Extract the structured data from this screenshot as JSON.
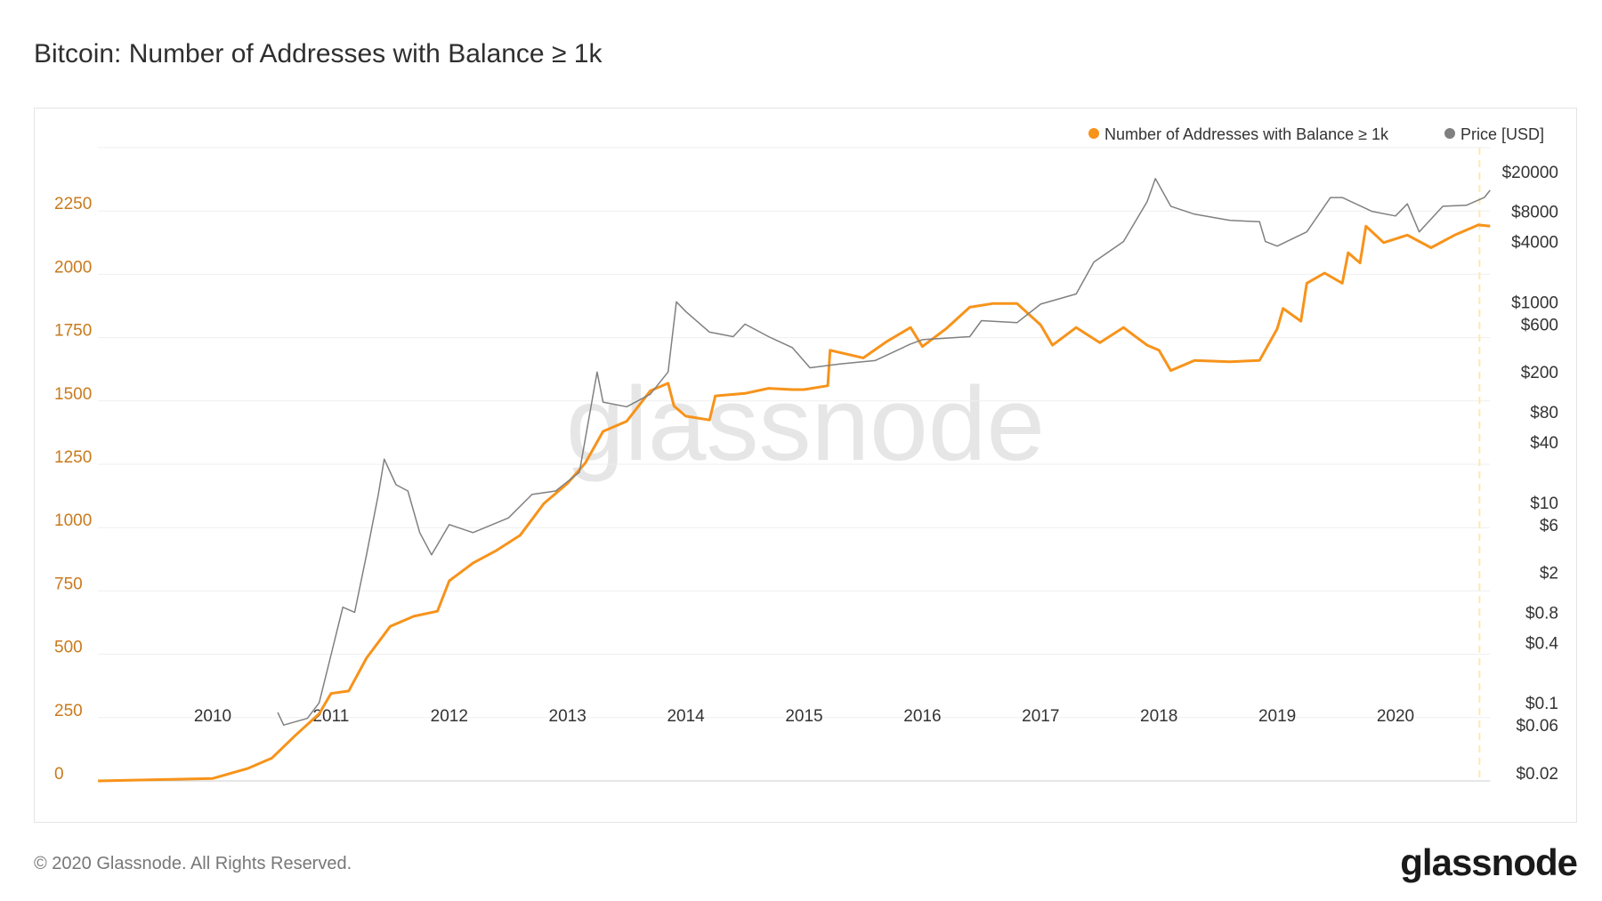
{
  "title": "Bitcoin: Number of Addresses with Balance ≥ 1k",
  "footer": {
    "copyright": "© 2020 Glassnode. All Rights Reserved.",
    "logo": "glassnode"
  },
  "watermark": "glassnode",
  "chart_data": {
    "type": "line",
    "title": "Bitcoin: Number of Addresses with Balance ≥ 1k",
    "legend_position": "top-right",
    "grid": true,
    "x_ticks": [
      "2010",
      "2011",
      "2012",
      "2013",
      "2014",
      "2015",
      "2016",
      "2017",
      "2018",
      "2019",
      "2020"
    ],
    "x_range": [
      2009.03,
      2020.8
    ],
    "y_left": {
      "range": [
        0,
        2500
      ],
      "ticks": [
        "0",
        "250",
        "500",
        "750",
        "1000",
        "1250",
        "1500",
        "1750",
        "2000",
        "2250"
      ],
      "color": "#c97a1c"
    },
    "y_right": {
      "scale": "log",
      "range": [
        0.02,
        20000
      ],
      "ticks": [
        {
          "v": 20000,
          "label": "$20000"
        },
        {
          "v": 8000,
          "label": "$8000"
        },
        {
          "v": 4000,
          "label": "$4000"
        },
        {
          "v": 1000,
          "label": "$1000"
        },
        {
          "v": 600,
          "label": "$600"
        },
        {
          "v": 200,
          "label": "$200"
        },
        {
          "v": 80,
          "label": "$80"
        },
        {
          "v": 40,
          "label": "$40"
        },
        {
          "v": 10,
          "label": "$10"
        },
        {
          "v": 6,
          "label": "$6"
        },
        {
          "v": 2,
          "label": "$2"
        },
        {
          "v": 0.8,
          "label": "$0.8"
        },
        {
          "v": 0.4,
          "label": "$0.4"
        },
        {
          "v": 0.1,
          "label": "$0.1"
        },
        {
          "v": 0.06,
          "label": "$0.06"
        },
        {
          "v": 0.02,
          "label": "$0.02"
        }
      ]
    },
    "marker_date": 2020.71,
    "series": [
      {
        "name": "Number of Addresses with Balance ≥ 1k",
        "color": "#f7931a",
        "axis": "left",
        "x": [
          2009.03,
          2010.0,
          2010.3,
          2010.5,
          2010.7,
          2010.9,
          2011.0,
          2011.15,
          2011.3,
          2011.5,
          2011.7,
          2011.9,
          2012.0,
          2012.2,
          2012.4,
          2012.6,
          2012.8,
          2013.0,
          2013.15,
          2013.3,
          2013.5,
          2013.7,
          2013.85,
          2013.9,
          2014.0,
          2014.2,
          2014.25,
          2014.5,
          2014.7,
          2014.9,
          2015.0,
          2015.2,
          2015.22,
          2015.5,
          2015.7,
          2015.9,
          2016.0,
          2016.2,
          2016.4,
          2016.6,
          2016.8,
          2017.0,
          2017.1,
          2017.3,
          2017.5,
          2017.7,
          2017.9,
          2018.0,
          2018.1,
          2018.3,
          2018.6,
          2018.85,
          2019.0,
          2019.05,
          2019.2,
          2019.25,
          2019.4,
          2019.55,
          2019.6,
          2019.7,
          2019.75,
          2019.9,
          2020.1,
          2020.3,
          2020.5,
          2020.7,
          2020.8
        ],
        "values": [
          0,
          10,
          50,
          90,
          180,
          265,
          345,
          355,
          485,
          610,
          650,
          670,
          790,
          860,
          910,
          970,
          1095,
          1175,
          1255,
          1380,
          1420,
          1540,
          1570,
          1480,
          1440,
          1425,
          1520,
          1530,
          1550,
          1545,
          1545,
          1560,
          1700,
          1670,
          1735,
          1790,
          1715,
          1785,
          1870,
          1885,
          1885,
          1800,
          1720,
          1790,
          1730,
          1790,
          1720,
          1700,
          1620,
          1660,
          1655,
          1660,
          1785,
          1865,
          1815,
          1965,
          2005,
          1965,
          2085,
          2045,
          2190,
          2125,
          2155,
          2105,
          2155,
          2195,
          2190
        ]
      },
      {
        "name": "Price [USD]",
        "color": "#808080",
        "axis": "right",
        "x": [
          2010.55,
          2010.6,
          2010.8,
          2010.9,
          2011.0,
          2011.1,
          2011.2,
          2011.3,
          2011.4,
          2011.45,
          2011.55,
          2011.65,
          2011.75,
          2011.85,
          2012.0,
          2012.2,
          2012.5,
          2012.7,
          2012.9,
          2013.1,
          2013.25,
          2013.3,
          2013.5,
          2013.7,
          2013.85,
          2013.92,
          2014.0,
          2014.2,
          2014.4,
          2014.5,
          2014.7,
          2014.9,
          2015.05,
          2015.3,
          2015.6,
          2015.9,
          2016.0,
          2016.4,
          2016.5,
          2016.8,
          2017.0,
          2017.3,
          2017.45,
          2017.7,
          2017.9,
          2017.97,
          2018.1,
          2018.3,
          2018.6,
          2018.85,
          2018.9,
          2019.0,
          2019.25,
          2019.45,
          2019.55,
          2019.8,
          2020.0,
          2020.1,
          2020.2,
          2020.4,
          2020.6,
          2020.75,
          2020.8
        ],
        "values": [
          0.08,
          0.06,
          0.07,
          0.1,
          0.3,
          0.9,
          0.8,
          3,
          12,
          27,
          15,
          13,
          5,
          3,
          6,
          5,
          7,
          12,
          13,
          20,
          200,
          100,
          90,
          120,
          200,
          1000,
          800,
          500,
          450,
          600,
          450,
          350,
          220,
          240,
          260,
          380,
          420,
          450,
          650,
          620,
          950,
          1200,
          2500,
          4000,
          10000,
          17000,
          9000,
          7500,
          6500,
          6300,
          4000,
          3600,
          5000,
          11000,
          11000,
          8000,
          7200,
          9500,
          5000,
          9000,
          9200,
          11000,
          13000
        ]
      }
    ]
  }
}
